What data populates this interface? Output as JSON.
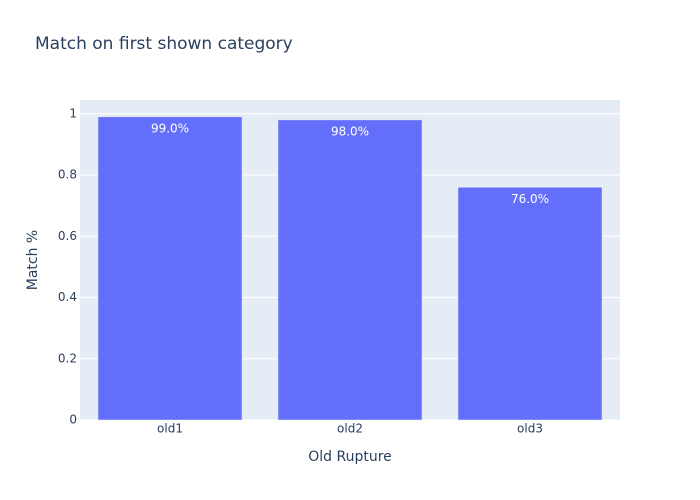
{
  "chart_data": {
    "type": "bar",
    "title": "Match on first shown category",
    "x_label": "Old Rupture",
    "y_label": "Match %",
    "categories": [
      "old1",
      "old2",
      "old3"
    ],
    "values": [
      0.99,
      0.98,
      0.76
    ],
    "value_labels": [
      "99.0%",
      "98.0%",
      "76.0%"
    ],
    "color": "#636efa",
    "ylim": [
      0,
      1.045
    ],
    "yticks": [
      0,
      0.2,
      0.4,
      0.6,
      0.8,
      1
    ],
    "grid": true
  }
}
